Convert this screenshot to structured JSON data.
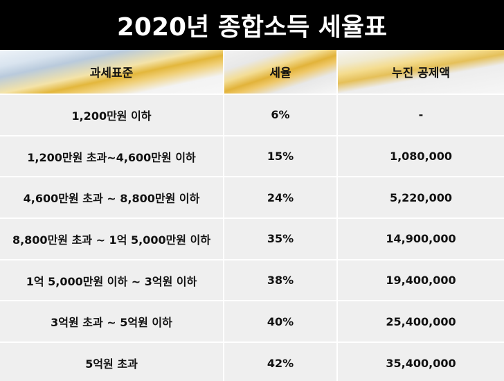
{
  "title": "2020년 종합소득 세율표",
  "table": {
    "headers": [
      "과세표준",
      "세율",
      "누진 공제액"
    ],
    "rows": [
      [
        "1,200만원 이하",
        "6%",
        "-"
      ],
      [
        "1,200만원 초과~4,600만원 이하",
        "15%",
        "1,080,000"
      ],
      [
        "4,600만원 초과 ~ 8,800만원 이하",
        "24%",
        "5,220,000"
      ],
      [
        "8,800만원 초과 ~ 1억 5,000만원 이하",
        "35%",
        "14,900,000"
      ],
      [
        "1억 5,000만원 이하 ~ 3억원 이하",
        "38%",
        "19,400,000"
      ],
      [
        "3억원 초과 ~ 5억원 이하",
        "40%",
        "25,400,000"
      ],
      [
        "5억원 초과",
        "42%",
        "35,400,000"
      ]
    ]
  },
  "colors": {
    "title_background": "#000000",
    "title_text": "#ffffff",
    "cell_background": "#efefef",
    "header_accent": "#e3b73c"
  }
}
